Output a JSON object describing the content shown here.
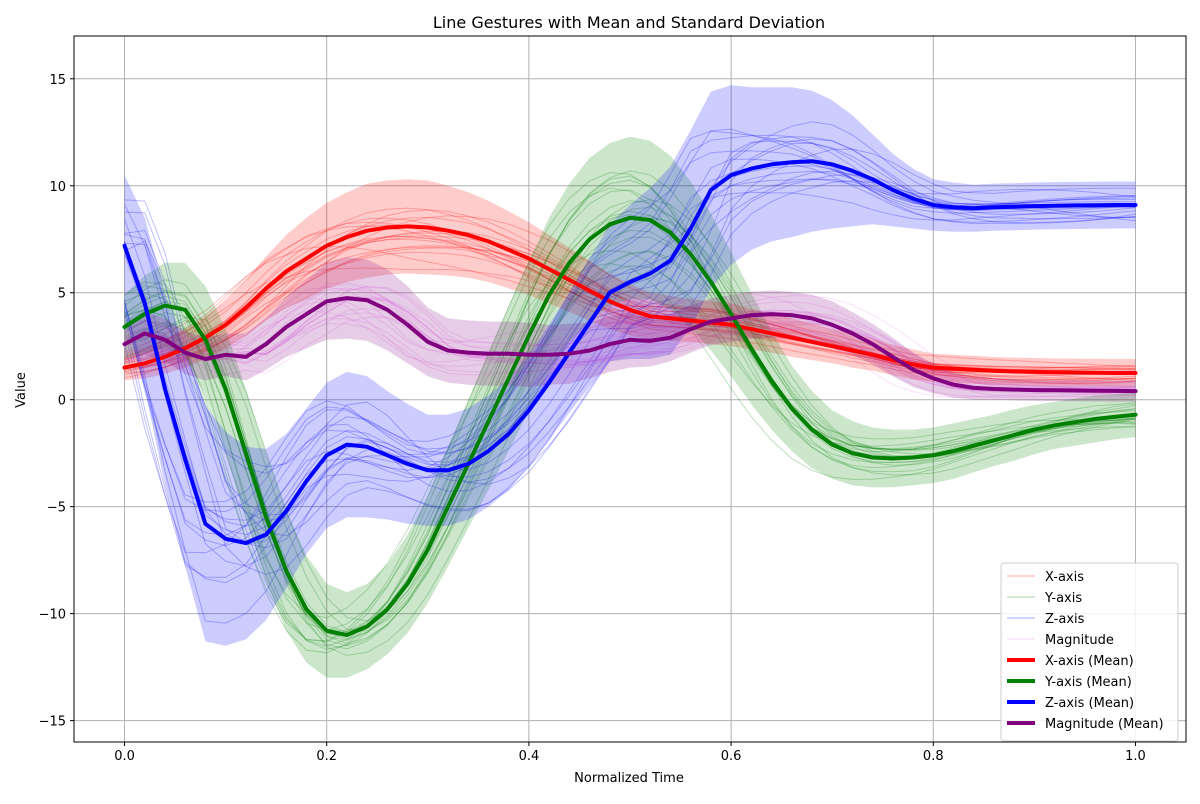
{
  "chart_data": {
    "type": "line",
    "title": "Line Gestures with Mean and Standard Deviation",
    "xlabel": "Normalized Time",
    "ylabel": "Value",
    "xlim": [
      -0.05,
      1.05
    ],
    "ylim": [
      -16,
      17
    ],
    "xticks": [
      0.0,
      0.2,
      0.4,
      0.6,
      0.8,
      1.0
    ],
    "xtick_labels": [
      "0.0",
      "0.2",
      "0.4",
      "0.6",
      "0.8",
      "1.0"
    ],
    "yticks": [
      -15,
      -10,
      -5,
      0,
      5,
      10,
      15
    ],
    "ytick_labels": [
      "−15",
      "−10",
      "−5",
      "0",
      "5",
      "10",
      "15"
    ],
    "grid": true,
    "legend_position": "lower-right",
    "legend": [
      {
        "label": "X-axis",
        "color": "#ff0000",
        "style": "thin"
      },
      {
        "label": "Y-axis",
        "color": "#008000",
        "style": "thin"
      },
      {
        "label": "Z-axis",
        "color": "#0000ff",
        "style": "thin"
      },
      {
        "label": "Magnitude",
        "color": "#ee82ee",
        "style": "thin"
      },
      {
        "label": "X-axis (Mean)",
        "color": "#ff0000",
        "style": "thick"
      },
      {
        "label": "Y-axis (Mean)",
        "color": "#008000",
        "style": "thick"
      },
      {
        "label": "Z-axis (Mean)",
        "color": "#0000ff",
        "style": "thick"
      },
      {
        "label": "Magnitude (Mean)",
        "color": "#800080",
        "style": "thick"
      }
    ],
    "x": [
      0.0,
      0.02,
      0.04,
      0.06,
      0.08,
      0.1,
      0.12,
      0.14,
      0.16,
      0.18,
      0.2,
      0.22,
      0.24,
      0.26,
      0.28,
      0.3,
      0.32,
      0.34,
      0.36,
      0.38,
      0.4,
      0.42,
      0.44,
      0.46,
      0.48,
      0.5,
      0.52,
      0.54,
      0.56,
      0.58,
      0.6,
      0.62,
      0.64,
      0.66,
      0.68,
      0.7,
      0.72,
      0.74,
      0.76,
      0.78,
      0.8,
      0.82,
      0.84,
      0.86,
      0.88,
      0.9,
      0.92,
      0.94,
      0.96,
      0.98,
      1.0
    ],
    "series": [
      {
        "name": "X-axis (Mean)",
        "color": "#ff0000",
        "band_color": "#ff0000",
        "values": [
          1.5,
          1.7,
          2.0,
          2.4,
          2.9,
          3.5,
          4.3,
          5.2,
          6.0,
          6.6,
          7.2,
          7.6,
          7.9,
          8.05,
          8.1,
          8.05,
          7.9,
          7.7,
          7.4,
          7.0,
          6.6,
          6.1,
          5.6,
          5.1,
          4.6,
          4.2,
          3.9,
          3.8,
          3.7,
          3.6,
          3.5,
          3.3,
          3.1,
          2.9,
          2.7,
          2.5,
          2.3,
          2.1,
          1.85,
          1.65,
          1.5,
          1.45,
          1.4,
          1.35,
          1.32,
          1.3,
          1.28,
          1.27,
          1.26,
          1.25,
          1.25
        ],
        "std": [
          0.6,
          0.7,
          0.8,
          0.9,
          1.0,
          1.1,
          1.3,
          1.5,
          1.7,
          1.9,
          2.0,
          2.1,
          2.2,
          2.2,
          2.2,
          2.2,
          2.1,
          2.0,
          1.9,
          1.8,
          1.7,
          1.6,
          1.5,
          1.4,
          1.3,
          1.2,
          1.1,
          1.05,
          1.0,
          1.0,
          1.0,
          0.95,
          0.9,
          0.9,
          0.85,
          0.8,
          0.8,
          0.75,
          0.7,
          0.7,
          0.65,
          0.65,
          0.65,
          0.65,
          0.65,
          0.65,
          0.65,
          0.65,
          0.65,
          0.65,
          0.65
        ]
      },
      {
        "name": "Y-axis (Mean)",
        "color": "#008000",
        "band_color": "#008000",
        "values": [
          3.4,
          4.0,
          4.4,
          4.2,
          2.8,
          0.5,
          -2.5,
          -5.5,
          -8.0,
          -9.8,
          -10.8,
          -11.0,
          -10.6,
          -9.8,
          -8.6,
          -7.0,
          -5.0,
          -3.0,
          -1.0,
          1.0,
          3.0,
          4.9,
          6.4,
          7.5,
          8.2,
          8.5,
          8.4,
          7.8,
          6.8,
          5.5,
          4.0,
          2.4,
          0.9,
          -0.4,
          -1.4,
          -2.1,
          -2.5,
          -2.7,
          -2.75,
          -2.7,
          -2.6,
          -2.4,
          -2.15,
          -1.9,
          -1.65,
          -1.4,
          -1.2,
          -1.05,
          -0.9,
          -0.8,
          -0.7
        ],
        "std": [
          1.5,
          1.8,
          2.0,
          2.2,
          2.5,
          2.8,
          3.0,
          3.0,
          2.8,
          2.5,
          2.2,
          2.0,
          2.0,
          2.1,
          2.3,
          2.5,
          2.8,
          3.0,
          3.2,
          3.4,
          3.5,
          3.6,
          3.7,
          3.8,
          3.8,
          3.8,
          3.7,
          3.6,
          3.4,
          3.2,
          2.9,
          2.6,
          2.3,
          2.0,
          1.8,
          1.6,
          1.5,
          1.4,
          1.35,
          1.3,
          1.3,
          1.3,
          1.25,
          1.2,
          1.2,
          1.15,
          1.1,
          1.1,
          1.1,
          1.05,
          1.05
        ]
      },
      {
        "name": "Z-axis (Mean)",
        "color": "#0000ff",
        "band_color": "#0000ff",
        "values": [
          7.2,
          4.5,
          0.5,
          -2.8,
          -5.8,
          -6.5,
          -6.7,
          -6.3,
          -5.2,
          -3.8,
          -2.6,
          -2.1,
          -2.2,
          -2.6,
          -3.0,
          -3.3,
          -3.3,
          -3.0,
          -2.4,
          -1.6,
          -0.5,
          0.8,
          2.2,
          3.6,
          5.0,
          5.5,
          5.9,
          6.5,
          8.0,
          9.8,
          10.5,
          10.8,
          11.0,
          11.1,
          11.15,
          11.0,
          10.7,
          10.3,
          9.8,
          9.4,
          9.1,
          9.0,
          8.95,
          9.0,
          9.02,
          9.05,
          9.07,
          9.08,
          9.09,
          9.1,
          9.1
        ],
        "std": [
          3.3,
          4.0,
          4.5,
          5.0,
          5.5,
          5.0,
          4.5,
          4.0,
          3.6,
          3.4,
          3.4,
          3.4,
          3.3,
          3.0,
          2.8,
          2.6,
          2.6,
          2.6,
          2.6,
          2.6,
          2.6,
          2.7,
          2.8,
          3.0,
          3.2,
          3.6,
          4.0,
          4.4,
          4.6,
          4.6,
          4.2,
          3.8,
          3.6,
          3.5,
          3.3,
          3.0,
          2.6,
          2.1,
          1.7,
          1.4,
          1.2,
          1.15,
          1.1,
          1.1,
          1.1,
          1.1,
          1.1,
          1.1,
          1.1,
          1.1,
          1.1
        ]
      },
      {
        "name": "Magnitude (Mean)",
        "color": "#800080",
        "band_color": "#800080",
        "values": [
          2.6,
          3.1,
          2.8,
          2.2,
          1.9,
          2.1,
          2.0,
          2.6,
          3.4,
          4.0,
          4.6,
          4.75,
          4.65,
          4.2,
          3.5,
          2.7,
          2.3,
          2.2,
          2.15,
          2.15,
          2.1,
          2.1,
          2.15,
          2.3,
          2.6,
          2.8,
          2.75,
          2.9,
          3.3,
          3.65,
          3.8,
          3.95,
          4.0,
          3.95,
          3.8,
          3.5,
          3.1,
          2.6,
          2.0,
          1.4,
          1.0,
          0.7,
          0.55,
          0.5,
          0.47,
          0.45,
          0.44,
          0.43,
          0.42,
          0.41,
          0.4
        ],
        "std": [
          0.9,
          1.0,
          1.0,
          1.0,
          1.0,
          1.0,
          1.1,
          1.2,
          1.4,
          1.6,
          1.8,
          1.9,
          1.9,
          1.9,
          1.8,
          1.6,
          1.5,
          1.5,
          1.5,
          1.5,
          1.5,
          1.4,
          1.4,
          1.3,
          1.3,
          1.3,
          1.2,
          1.1,
          1.1,
          1.1,
          1.1,
          1.1,
          1.1,
          1.1,
          1.1,
          1.1,
          1.0,
          0.95,
          0.9,
          0.8,
          0.7,
          0.6,
          0.55,
          0.5,
          0.5,
          0.5,
          0.5,
          0.5,
          0.5,
          0.5,
          0.5
        ]
      }
    ],
    "individual_trials_per_axis": 20
  }
}
